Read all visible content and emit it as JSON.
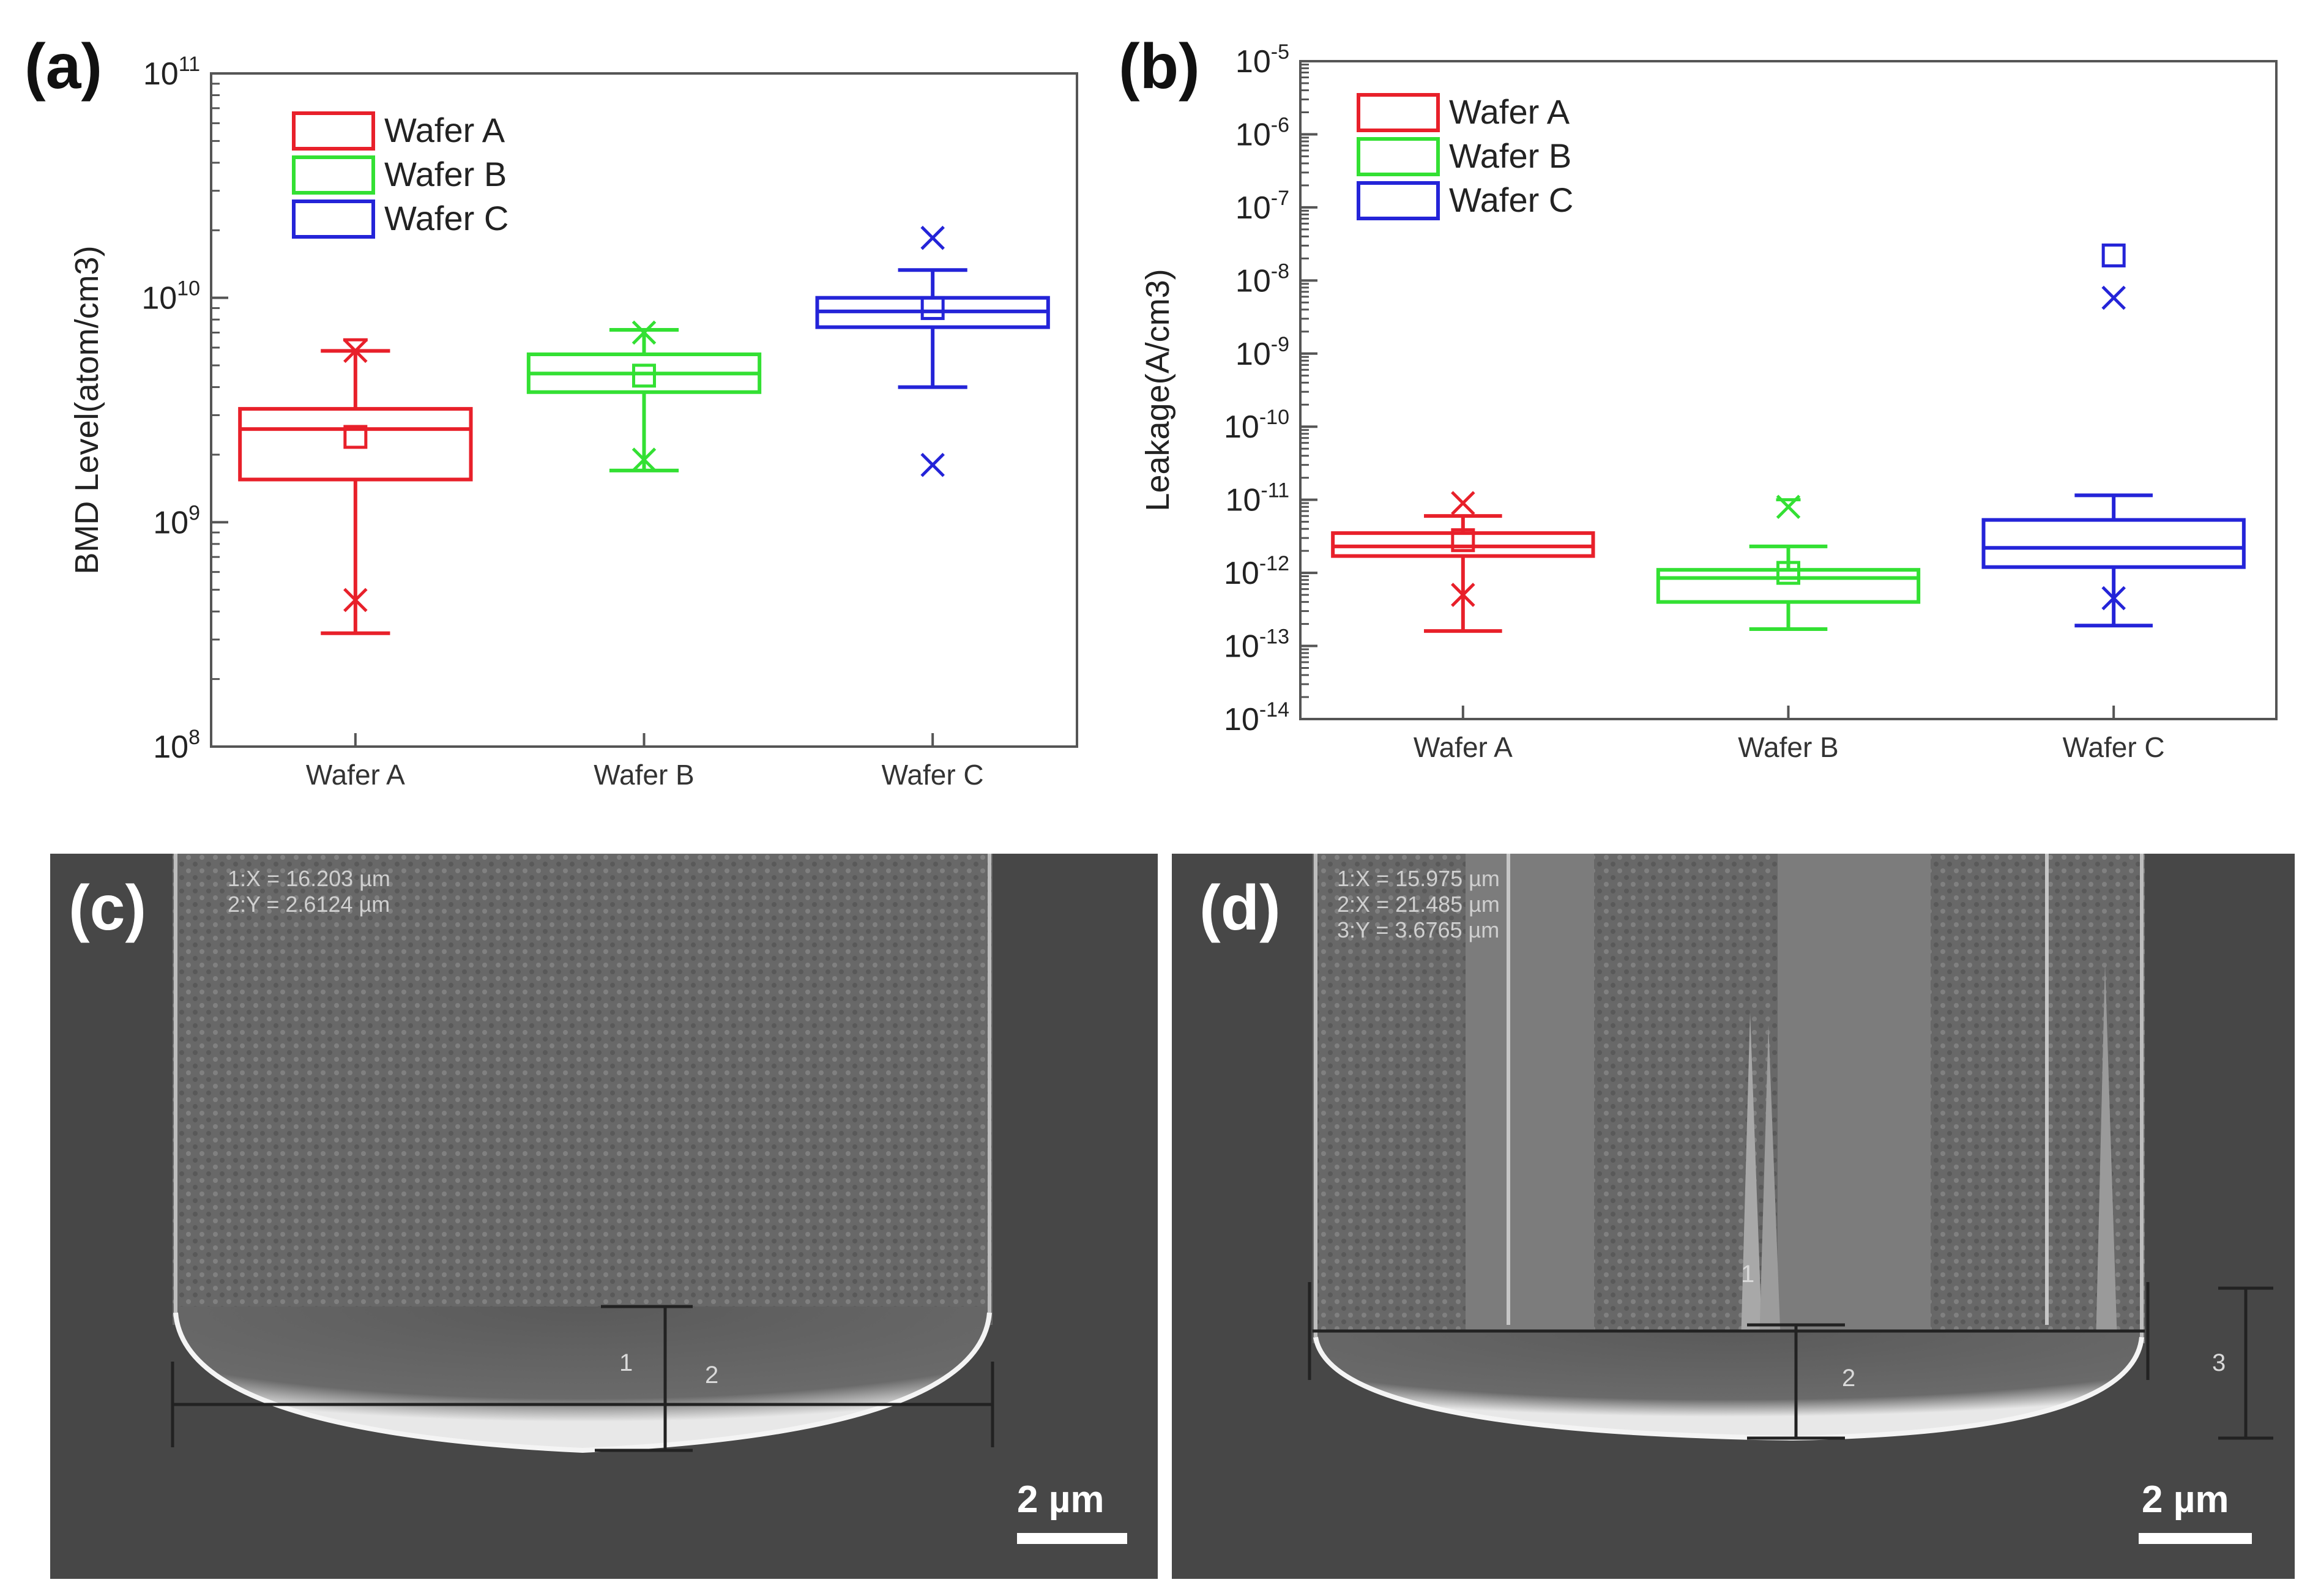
{
  "panels": {
    "a": {
      "letter": "(a)"
    },
    "b": {
      "letter": "(b)"
    },
    "c": {
      "letter": "(c)",
      "readout": [
        "1:X = 16.203 µm",
        "2:Y = 2.6124 µm"
      ],
      "scale_label": "2 µm",
      "marker_labels": [
        "1",
        "2"
      ]
    },
    "d": {
      "letter": "(d)",
      "readout": [
        "1:X = 15.975 µm",
        "2:X = 21.485 µm",
        "3:Y = 3.6765 µm"
      ],
      "scale_label": "2 µm",
      "marker_labels": [
        "1",
        "2",
        "3"
      ]
    }
  },
  "colors": {
    "wafer_a": "#e8202a",
    "wafer_b": "#33e033",
    "wafer_c": "#2424d8",
    "axis": "#555555"
  },
  "chart_data": [
    {
      "id": "a",
      "type": "box",
      "scale": "log",
      "ylabel": "BMD Level(atom/cm3)",
      "ylim_exp": [
        8,
        11
      ],
      "y_ticks": [
        {
          "base": "10",
          "exp": "8"
        },
        {
          "base": "10",
          "exp": "9"
        },
        {
          "base": "10",
          "exp": "10"
        },
        {
          "base": "10",
          "exp": "11"
        }
      ],
      "categories": [
        "Wafer A",
        "Wafer B",
        "Wafer C"
      ],
      "legend": [
        "Wafer A",
        "Wafer B",
        "Wafer C"
      ],
      "legend_position": "top-left",
      "series": [
        {
          "name": "Wafer A",
          "color_key": "wafer_a",
          "whisker_low": 320000000.0,
          "q1": 1550000000.0,
          "median": 2600000000.0,
          "q3": 3200000000.0,
          "whisker_high": 5800000000.0,
          "mean": 2400000000.0,
          "outliers": [
            450000000.0,
            5800000000.0
          ],
          "extremes": [
            6500000000.0
          ]
        },
        {
          "name": "Wafer B",
          "color_key": "wafer_b",
          "whisker_low": 1700000000.0,
          "q1": 3800000000.0,
          "median": 4600000000.0,
          "q3": 5600000000.0,
          "whisker_high": 7200000000.0,
          "mean": 4500000000.0,
          "outliers": [
            1900000000.0,
            7000000000.0
          ],
          "extremes": []
        },
        {
          "name": "Wafer C",
          "color_key": "wafer_c",
          "whisker_low": 4000000000.0,
          "q1": 7400000000.0,
          "median": 8700000000.0,
          "q3": 10000000000.0,
          "whisker_high": 13300000000.0,
          "mean": 9000000000.0,
          "outliers": [
            1800000000.0,
            18500000000.0
          ],
          "extremes": []
        }
      ]
    },
    {
      "id": "b",
      "type": "box",
      "scale": "log",
      "ylabel": "Leakage(A/cm3)",
      "ylim_exp": [
        -14,
        -5
      ],
      "y_ticks": [
        {
          "base": "10",
          "exp": "-5"
        },
        {
          "base": "10",
          "exp": "-6"
        },
        {
          "base": "10",
          "exp": "-7"
        },
        {
          "base": "10",
          "exp": "-8"
        },
        {
          "base": "10",
          "exp": "-9"
        },
        {
          "base": "10",
          "exp": "-10"
        },
        {
          "base": "10",
          "exp": "-11"
        },
        {
          "base": "10",
          "exp": "-12"
        },
        {
          "base": "10",
          "exp": "-13"
        },
        {
          "base": "10",
          "exp": "-14"
        }
      ],
      "categories": [
        "Wafer A",
        "Wafer B",
        "Wafer C"
      ],
      "legend": [
        "Wafer A",
        "Wafer B",
        "Wafer C"
      ],
      "legend_position": "top-left",
      "series": [
        {
          "name": "Wafer A",
          "color_key": "wafer_a",
          "whisker_low": 1.6e-13,
          "q1": 1.7e-12,
          "median": 2.3e-12,
          "q3": 3.5e-12,
          "whisker_high": 6e-12,
          "mean": 2.8e-12,
          "outliers": [
            5e-13,
            9e-12
          ],
          "extremes": []
        },
        {
          "name": "Wafer B",
          "color_key": "wafer_b",
          "whisker_low": 1.7e-13,
          "q1": 4e-13,
          "median": 8.5e-13,
          "q3": 1.1e-12,
          "whisker_high": 2.3e-12,
          "mean": 1e-12,
          "outliers": [
            8e-12
          ],
          "extremes": [
            1e-11
          ]
        },
        {
          "name": "Wafer C",
          "color_key": "wafer_c",
          "whisker_low": 1.9e-13,
          "q1": 1.2e-12,
          "median": 2.2e-12,
          "q3": 5.3e-12,
          "whisker_high": 1.15e-11,
          "mean": 2.2e-08,
          "outliers": [
            4.5e-13,
            5.8e-09
          ],
          "extremes": []
        }
      ]
    }
  ]
}
